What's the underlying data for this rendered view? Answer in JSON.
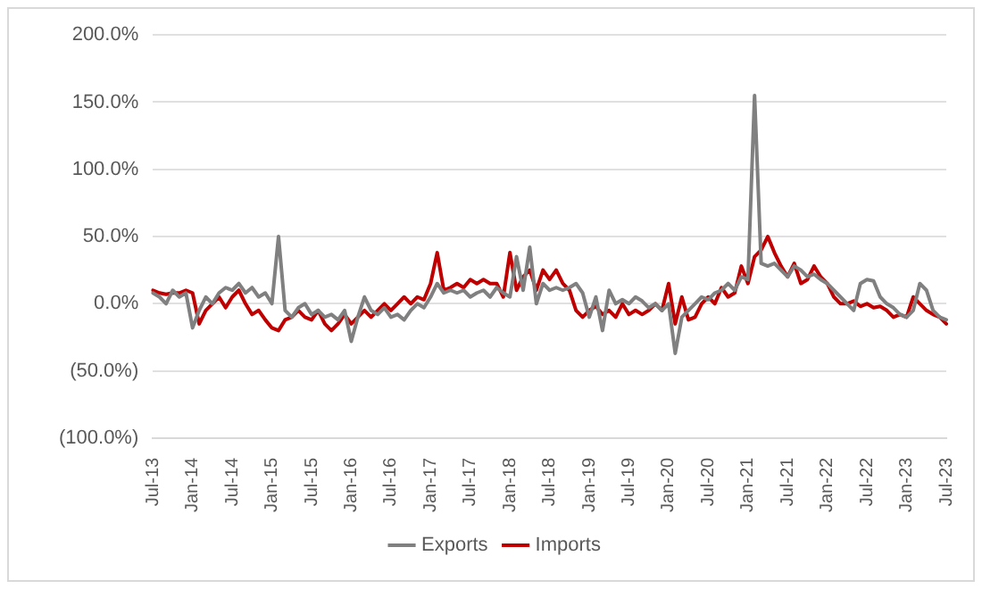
{
  "chart_data": {
    "type": "line",
    "categories": [
      "Jul-13",
      null,
      null,
      null,
      null,
      null,
      "Jan-14",
      null,
      null,
      null,
      null,
      null,
      "Jul-14",
      null,
      null,
      null,
      null,
      null,
      "Jan-15",
      null,
      null,
      null,
      null,
      null,
      "Jul-15",
      null,
      null,
      null,
      null,
      null,
      "Jan-16",
      null,
      null,
      null,
      null,
      null,
      "Jul-16",
      null,
      null,
      null,
      null,
      null,
      "Jan-17",
      null,
      null,
      null,
      null,
      null,
      "Jul-17",
      null,
      null,
      null,
      null,
      null,
      "Jan-18",
      null,
      null,
      null,
      null,
      null,
      "Jul-18",
      null,
      null,
      null,
      null,
      null,
      "Jan-19",
      null,
      null,
      null,
      null,
      null,
      "Jul-19",
      null,
      null,
      null,
      null,
      null,
      "Jan-20",
      null,
      null,
      null,
      null,
      null,
      "Jul-20",
      null,
      null,
      null,
      null,
      null,
      "Jan-21",
      null,
      null,
      null,
      null,
      null,
      "Jul-21",
      null,
      null,
      null,
      null,
      null,
      "Jan-22",
      null,
      null,
      null,
      null,
      null,
      "Jul-22",
      null,
      null,
      null,
      null,
      null,
      "Jan-23",
      null,
      null,
      null,
      null,
      null,
      "Jul-23"
    ],
    "series": [
      {
        "name": "Exports",
        "color": "#808080",
        "values": [
          8,
          5,
          0,
          10,
          5,
          8,
          -18,
          -5,
          5,
          0,
          8,
          12,
          10,
          15,
          8,
          12,
          5,
          8,
          0,
          50,
          -5,
          -10,
          -3,
          0,
          -8,
          -5,
          -10,
          -8,
          -12,
          -5,
          -28,
          -10,
          5,
          -5,
          -8,
          -3,
          -10,
          -8,
          -12,
          -5,
          0,
          -3,
          5,
          15,
          8,
          10,
          8,
          10,
          5,
          8,
          10,
          5,
          12,
          8,
          5,
          35,
          10,
          42,
          0,
          15,
          10,
          12,
          10,
          12,
          15,
          8,
          -10,
          5,
          -20,
          10,
          0,
          3,
          0,
          5,
          2,
          -3,
          0,
          -5,
          0,
          -37,
          -10,
          -5,
          0,
          5,
          3,
          8,
          10,
          15,
          10,
          20,
          18,
          155,
          30,
          28,
          30,
          25,
          20,
          28,
          25,
          20,
          22,
          18,
          15,
          10,
          5,
          0,
          -5,
          15,
          18,
          17,
          5,
          0,
          -3,
          -8,
          -10,
          -5,
          15,
          10,
          -5,
          -10,
          -12
        ]
      },
      {
        "name": "Imports",
        "color": "#c00000",
        "values": [
          10,
          8,
          7,
          8,
          8,
          10,
          8,
          -15,
          -5,
          0,
          5,
          -3,
          5,
          10,
          0,
          -8,
          -5,
          -12,
          -18,
          -20,
          -12,
          -10,
          -5,
          -10,
          -12,
          -5,
          -15,
          -20,
          -15,
          -8,
          -15,
          -10,
          -5,
          -10,
          -5,
          0,
          -5,
          0,
          5,
          0,
          5,
          3,
          15,
          38,
          10,
          12,
          15,
          12,
          18,
          15,
          18,
          15,
          15,
          5,
          38,
          10,
          20,
          25,
          10,
          25,
          18,
          25,
          15,
          10,
          -5,
          -10,
          -5,
          -2,
          -8,
          -5,
          -10,
          0,
          -8,
          -5,
          -8,
          -5,
          0,
          -5,
          15,
          -15,
          5,
          -12,
          -10,
          0,
          5,
          0,
          12,
          5,
          8,
          28,
          15,
          35,
          40,
          50,
          38,
          28,
          20,
          30,
          15,
          18,
          28,
          20,
          15,
          5,
          0,
          0,
          2,
          -2,
          0,
          -3,
          -2,
          -5,
          -10,
          -8,
          -10,
          5,
          0,
          -5,
          -8,
          -10,
          -15
        ]
      }
    ],
    "ylim": [
      -100,
      200
    ],
    "yticks": [
      {
        "value": -100,
        "label": "(100.0%)"
      },
      {
        "value": -50,
        "label": "(50.0%)"
      },
      {
        "value": 0,
        "label": "0.0%"
      },
      {
        "value": 50,
        "label": "50.0%"
      },
      {
        "value": 100,
        "label": "100.0%"
      },
      {
        "value": 150,
        "label": "150.0%"
      },
      {
        "value": 200,
        "label": "200.0%"
      }
    ],
    "grid": "y",
    "legend": "bottom",
    "marker": "none",
    "line_style": "solid"
  }
}
